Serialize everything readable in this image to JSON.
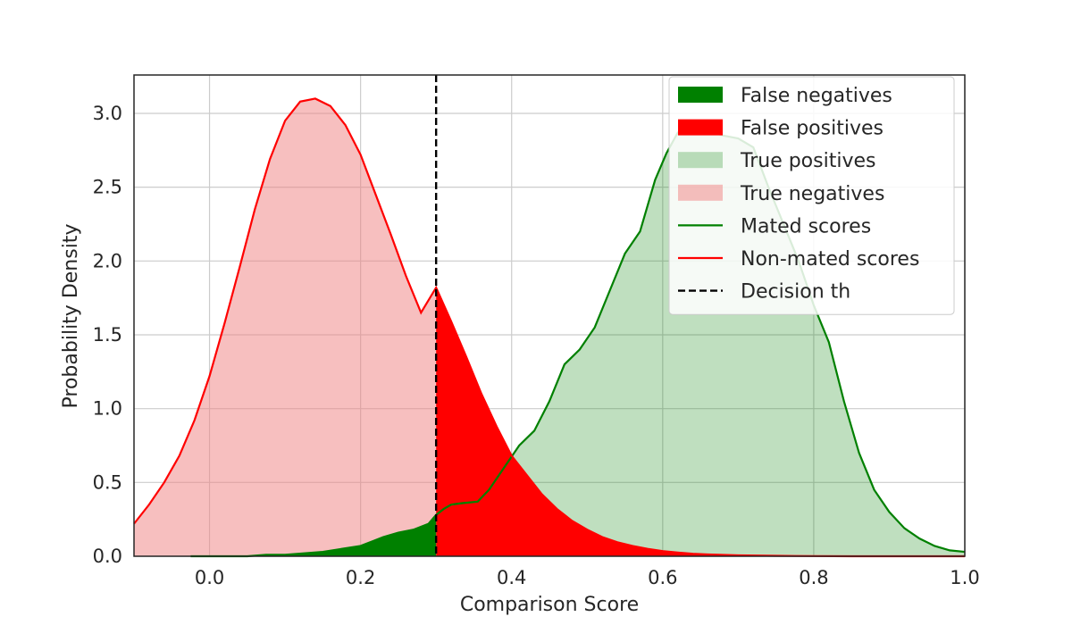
{
  "chart_data": {
    "type": "area",
    "title": "",
    "xlabel": "Comparison Score",
    "ylabel": "Probability Density",
    "xlim": [
      -0.1,
      1.0
    ],
    "ylim": [
      0.0,
      3.26
    ],
    "grid": true,
    "threshold": 0.3,
    "xticks": [
      0.0,
      0.2,
      0.4,
      0.6,
      0.8,
      1.0
    ],
    "xtick_labels": [
      "0.0",
      "0.2",
      "0.4",
      "0.6",
      "0.8",
      "1.0"
    ],
    "yticks": [
      0.0,
      0.5,
      1.0,
      1.5,
      2.0,
      2.5,
      3.0
    ],
    "ytick_labels": [
      "0.0",
      "0.5",
      "1.0",
      "1.5",
      "2.0",
      "2.5",
      "3.0"
    ],
    "legend": {
      "position": "top-right",
      "entries": [
        {
          "label": "False negatives",
          "kind": "patch",
          "color": "#008000",
          "alpha": 1.0
        },
        {
          "label": "False positives",
          "kind": "patch",
          "color": "#ff0000",
          "alpha": 1.0
        },
        {
          "label": "True positives",
          "kind": "patch",
          "color": "#008000",
          "alpha": 0.25
        },
        {
          "label": "True negatives",
          "kind": "patch",
          "color": "#f08080",
          "alpha": 0.5
        },
        {
          "label": "Mated scores",
          "kind": "line",
          "color": "#008000"
        },
        {
          "label": "Non-mated scores",
          "kind": "line",
          "color": "#ff0000"
        },
        {
          "label": "Decision th",
          "kind": "dashed",
          "color": "#000000"
        }
      ]
    },
    "series": [
      {
        "name": "Mated scores",
        "color": "#008000",
        "x": [
          -0.025,
          0.0,
          0.025,
          0.05,
          0.075,
          0.1,
          0.125,
          0.15,
          0.175,
          0.2,
          0.215,
          0.23,
          0.25,
          0.27,
          0.29,
          0.3,
          0.31,
          0.32,
          0.335,
          0.355,
          0.37,
          0.39,
          0.41,
          0.43,
          0.45,
          0.47,
          0.49,
          0.51,
          0.53,
          0.55,
          0.57,
          0.59,
          0.605,
          0.62,
          0.64,
          0.66,
          0.68,
          0.7,
          0.72,
          0.74,
          0.76,
          0.78,
          0.8,
          0.82,
          0.84,
          0.86,
          0.88,
          0.9,
          0.92,
          0.94,
          0.96,
          0.98,
          1.0
        ],
        "y": [
          0.0,
          0.0,
          0.0,
          0.0,
          0.01,
          0.01,
          0.02,
          0.03,
          0.05,
          0.07,
          0.1,
          0.13,
          0.16,
          0.18,
          0.22,
          0.28,
          0.32,
          0.35,
          0.36,
          0.37,
          0.45,
          0.6,
          0.75,
          0.85,
          1.05,
          1.3,
          1.4,
          1.55,
          1.8,
          2.05,
          2.2,
          2.55,
          2.73,
          2.87,
          2.9,
          2.88,
          2.85,
          2.83,
          2.77,
          2.5,
          2.25,
          2.0,
          1.7,
          1.45,
          1.05,
          0.7,
          0.45,
          0.3,
          0.19,
          0.12,
          0.07,
          0.04,
          0.03
        ]
      },
      {
        "name": "Non-mated scores",
        "color": "#ff0000",
        "x": [
          -0.1,
          -0.08,
          -0.06,
          -0.04,
          -0.02,
          0.0,
          0.02,
          0.04,
          0.06,
          0.08,
          0.1,
          0.12,
          0.14,
          0.16,
          0.18,
          0.2,
          0.22,
          0.24,
          0.26,
          0.28,
          0.3,
          0.32,
          0.34,
          0.36,
          0.38,
          0.4,
          0.42,
          0.44,
          0.46,
          0.48,
          0.5,
          0.52,
          0.54,
          0.56,
          0.58,
          0.6,
          0.62,
          0.64,
          0.66,
          0.7,
          0.75,
          0.8,
          0.85,
          0.9,
          0.95,
          1.0
        ],
        "y": [
          0.22,
          0.35,
          0.5,
          0.68,
          0.92,
          1.22,
          1.58,
          1.96,
          2.35,
          2.69,
          2.95,
          3.08,
          3.1,
          3.05,
          2.92,
          2.72,
          2.45,
          2.18,
          1.9,
          1.65,
          1.82,
          1.59,
          1.35,
          1.1,
          0.88,
          0.68,
          0.55,
          0.42,
          0.32,
          0.24,
          0.18,
          0.13,
          0.095,
          0.07,
          0.05,
          0.035,
          0.025,
          0.017,
          0.012,
          0.006,
          0.003,
          0.001,
          0.0,
          0.0,
          0.0,
          0.0
        ]
      }
    ]
  }
}
